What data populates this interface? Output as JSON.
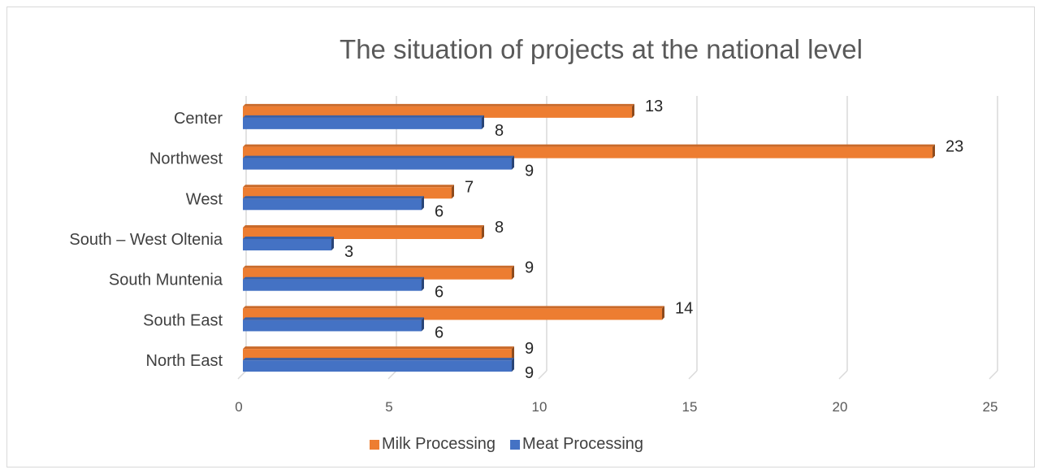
{
  "chart_data": {
    "type": "bar",
    "orientation": "horizontal",
    "title": "The situation of projects at the national level",
    "categories": [
      "Center",
      "Northwest",
      "West",
      "South – West Oltenia",
      "South Muntenia",
      "South East",
      "North East"
    ],
    "series": [
      {
        "name": "Milk Processing",
        "color": "#ED7D31",
        "values": [
          13,
          23,
          7,
          8,
          9,
          14,
          9
        ]
      },
      {
        "name": "Meat Processing",
        "color": "#4472C4",
        "values": [
          8,
          9,
          6,
          3,
          6,
          6,
          9
        ]
      }
    ],
    "xticks": [
      "0",
      "5",
      "10",
      "15",
      "20",
      "25"
    ],
    "xlim": [
      0,
      25
    ],
    "grid": true,
    "legend": "bottom",
    "data_labels": true,
    "style": "3d-bar"
  }
}
